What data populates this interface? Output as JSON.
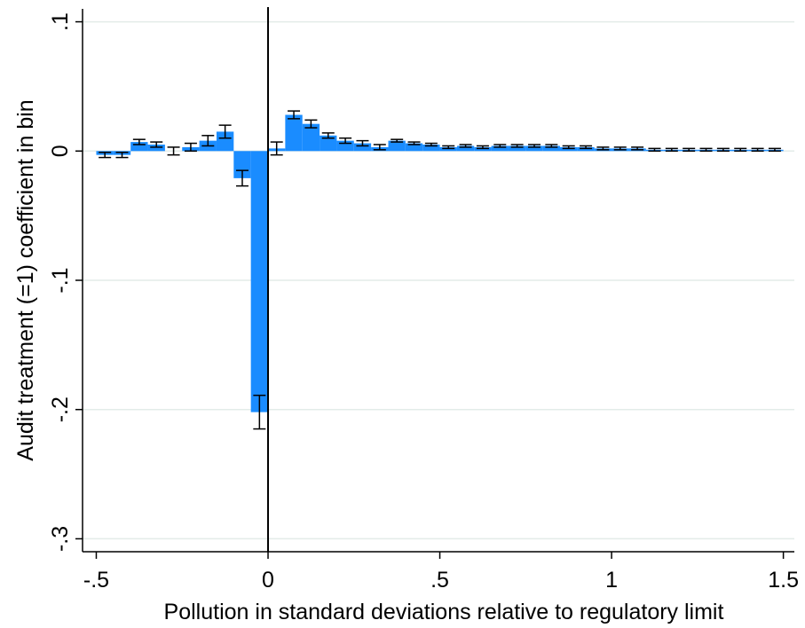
{
  "chart_data": {
    "type": "histogram",
    "x_label": "Pollution in standard deviations relative to regulatory limit",
    "y_label": "Audit treatment (=1) coefficient in bin",
    "bins": [
      -0.5,
      -0.45,
      -0.4,
      -0.35,
      -0.3,
      -0.25,
      -0.2,
      -0.15,
      -0.1,
      -0.05,
      0,
      0.05,
      0.1,
      0.15,
      0.2,
      0.25,
      0.3,
      0.35,
      0.4,
      0.45,
      0.5,
      0.55,
      0.6,
      0.65,
      0.7,
      0.75,
      0.8,
      0.85,
      0.9,
      0.95,
      1,
      1.05,
      1.1,
      1.15,
      1.2,
      1.25,
      1.3,
      1.35,
      1.4,
      1.45,
      1.5
    ],
    "values": [
      -0.003,
      -0.003,
      0.007,
      0.005,
      0,
      0.003,
      0.008,
      0.015,
      -0.021,
      -0.202,
      0.002,
      0.028,
      0.021,
      0.012,
      0.008,
      0.006,
      0.003,
      0.008,
      0.006,
      0.005,
      0.003,
      0.004,
      0.003,
      0.004,
      0.004,
      0.004,
      0.004,
      0.003,
      0.003,
      0.002,
      0.002,
      0.002,
      0.001,
      0.001,
      0.001,
      0.001,
      0.001,
      0.001,
      0.001,
      0.001
    ],
    "errors": [
      0.002,
      0.002,
      0.002,
      0.002,
      0.003,
      0.003,
      0.004,
      0.005,
      0.006,
      0.013,
      0.005,
      0.003,
      0.003,
      0.002,
      0.002,
      0.002,
      0.002,
      0.001,
      0.001,
      0.001,
      0.001,
      0.001,
      0.001,
      0.001,
      0.001,
      0.001,
      0.001,
      0.001,
      0.001,
      0.001,
      0.001,
      0.001,
      0.001,
      0.001,
      0.001,
      0.001,
      0.001,
      0.001,
      0.001,
      0.001
    ],
    "color": "#1a8cff",
    "xline": 0,
    "xlim": [
      -0.54,
      1.532
    ],
    "ylim": [
      -0.31,
      0.11
    ],
    "xticks": [
      {
        "value": -0.5,
        "label": "-.5"
      },
      0,
      {
        "value": 0.5,
        "label": ".5"
      },
      1,
      1.5
    ],
    "yticks": [
      {
        "value": 0.1,
        "label": ".1"
      },
      0,
      {
        "value": -0.1,
        "label": "-.1"
      },
      {
        "value": -0.2,
        "label": "-.2"
      },
      {
        "value": -0.3,
        "label": "-.3"
      }
    ],
    "grid": true
  }
}
